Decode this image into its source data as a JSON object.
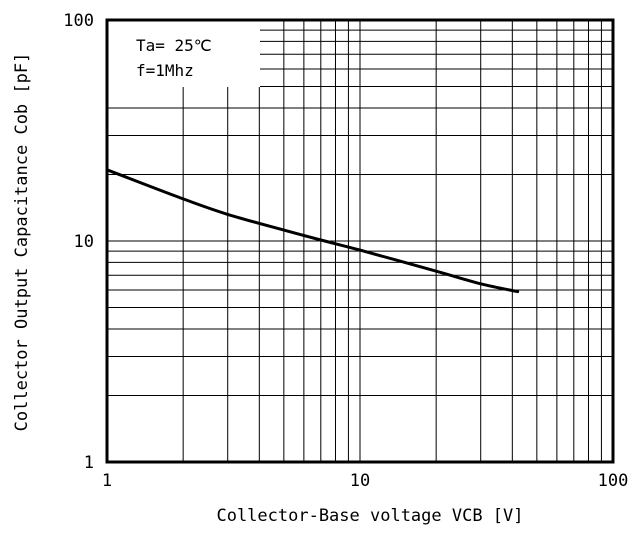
{
  "chart_data": {
    "type": "line",
    "title": "",
    "xlabel": "Collector-Base voltage VCB [V]",
    "ylabel": "Collector Output Capacitance Cob [pF]",
    "x_scale": "log",
    "y_scale": "log",
    "xlim": [
      1,
      100
    ],
    "ylim": [
      1,
      100
    ],
    "x_ticks": [
      "1",
      "10",
      "100"
    ],
    "y_ticks": [
      "1",
      "10",
      "100"
    ],
    "grid": true,
    "annotations": [
      "Ta= 25℃",
      "f=1Mhz"
    ],
    "series": [
      {
        "x": [
          1,
          2,
          3,
          5,
          7,
          10,
          20,
          30,
          42
        ],
        "y": [
          21,
          15.5,
          13.2,
          11.2,
          10.1,
          9.1,
          7.3,
          6.4,
          5.9
        ]
      }
    ],
    "line_color": "#000000"
  }
}
